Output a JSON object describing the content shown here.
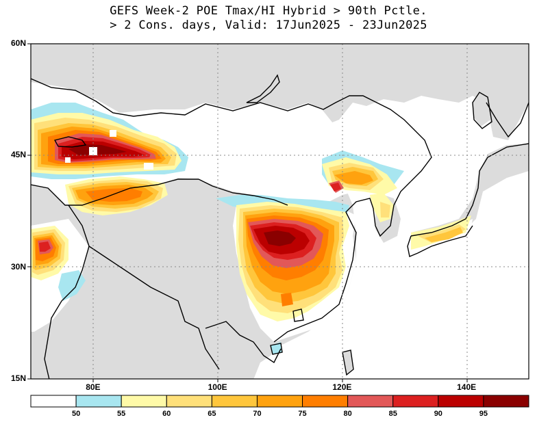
{
  "title": {
    "line1": "GEFS Week-2 POE Tmax/HI Hybrid > 90th Pctle.",
    "line2": "> 2 Cons. days, Valid: 17Jun2025 - 23Jun2025"
  },
  "map": {
    "lat_ticks": [
      {
        "value": 60,
        "label": "60N"
      },
      {
        "value": 45,
        "label": "45N"
      },
      {
        "value": 30,
        "label": "30N"
      },
      {
        "value": 15,
        "label": "15N"
      }
    ],
    "lon_ticks": [
      {
        "value": 80,
        "label": "80E"
      },
      {
        "value": 100,
        "label": "100E"
      },
      {
        "value": 120,
        "label": "120E"
      },
      {
        "value": 140,
        "label": "140E"
      }
    ],
    "land_color": "#dcdcdc",
    "ocean_color": "#ffffff"
  },
  "colorbar": {
    "bins": [
      {
        "color": "#ffffff"
      },
      {
        "color": "#a8e6f0",
        "label": "50"
      },
      {
        "color": "#fffaa8",
        "label": "55"
      },
      {
        "color": "#ffe07a",
        "label": "60"
      },
      {
        "color": "#ffc63c",
        "label": "65"
      },
      {
        "color": "#ffa20f",
        "label": "70"
      },
      {
        "color": "#ff7e00",
        "label": "75"
      },
      {
        "color": "#e25858",
        "label": "80"
      },
      {
        "color": "#dc2020",
        "label": "85"
      },
      {
        "color": "#bb0000",
        "label": "90"
      },
      {
        "color": "#8a0000",
        "label": "95"
      }
    ]
  }
}
